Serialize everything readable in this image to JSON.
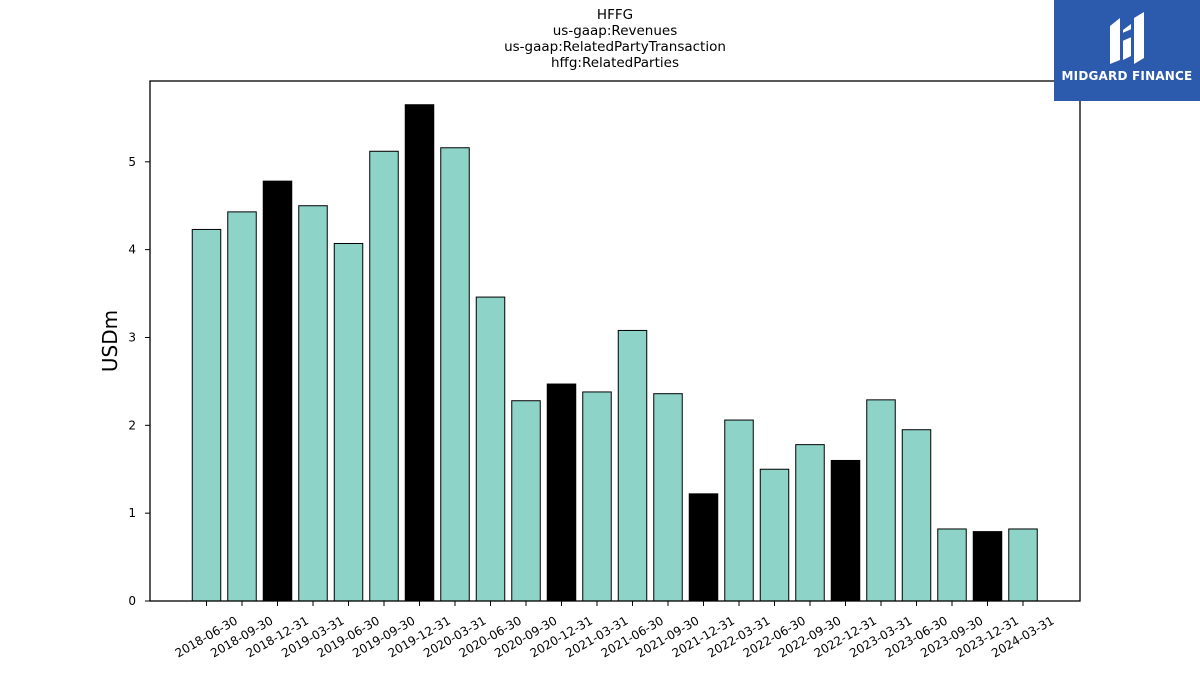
{
  "chart_data": {
    "type": "bar",
    "title_lines": [
      "HFFG",
      "us-gaap:Revenues",
      "us-gaap:RelatedPartyTransaction",
      "hffg:RelatedParties"
    ],
    "ylabel": "USDm",
    "xlabel": "",
    "ylim": [
      0,
      5.92
    ],
    "yticks": [
      0,
      1,
      2,
      3,
      4,
      5
    ],
    "categories": [
      "2018-06-30",
      "2018-09-30",
      "2018-12-31",
      "2019-03-31",
      "2019-06-30",
      "2019-09-30",
      "2019-12-31",
      "2020-03-31",
      "2020-06-30",
      "2020-09-30",
      "2020-12-31",
      "2021-03-31",
      "2021-06-30",
      "2021-09-30",
      "2021-12-31",
      "2022-03-31",
      "2022-06-30",
      "2022-09-30",
      "2022-12-31",
      "2023-03-31",
      "2023-06-30",
      "2023-09-30",
      "2023-12-31",
      "2024-03-31"
    ],
    "values": [
      4.23,
      4.43,
      4.78,
      4.5,
      4.07,
      5.12,
      5.65,
      5.16,
      3.46,
      2.28,
      2.47,
      2.38,
      3.08,
      2.36,
      1.22,
      2.06,
      1.5,
      1.78,
      1.6,
      2.29,
      1.95,
      0.82,
      0.79,
      0.82
    ],
    "highlight": [
      false,
      false,
      true,
      false,
      false,
      false,
      true,
      false,
      false,
      false,
      true,
      false,
      false,
      false,
      true,
      false,
      false,
      false,
      true,
      false,
      false,
      false,
      true,
      false
    ],
    "colors": {
      "bar": "#8dd3c7",
      "highlight": "#000000",
      "edge": "#000000"
    },
    "grid": false,
    "legend": "none"
  },
  "logo": {
    "text": "MIDGARD FINANCE",
    "background": "#2c5aad"
  }
}
